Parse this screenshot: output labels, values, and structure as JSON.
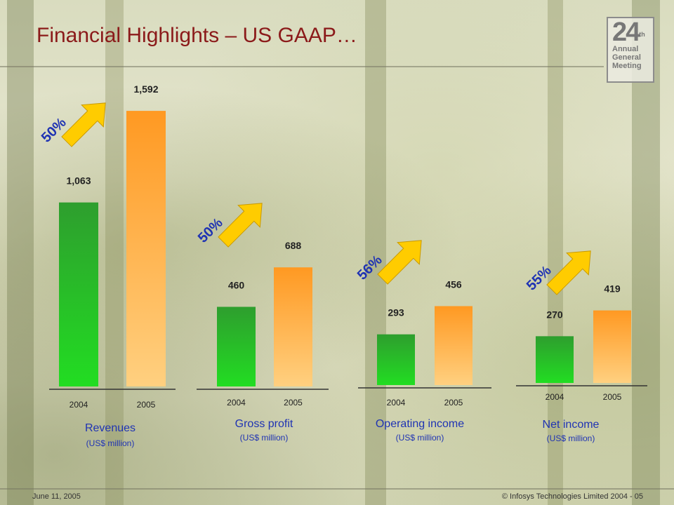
{
  "slide": {
    "title": "Financial Highlights – US GAAP…",
    "logo": {
      "number": "24",
      "suffix": "th",
      "lines": [
        "Annual",
        "General",
        "Meeting"
      ]
    },
    "footer": {
      "date": "June 11, 2005",
      "copyright": "© Infosys Technologies Limited 2004 - 05"
    }
  },
  "chart_data": {
    "type": "bar",
    "unit": "(US$ million)",
    "colors": {
      "y2004": "#2e9e2e",
      "y2005": "#ff9933",
      "growth_text": "#1f33b3",
      "arrow": "#ffcc00"
    },
    "groups": [
      {
        "name": "Revenues",
        "unit": "(US$ million)",
        "categories": [
          "2004",
          "2005"
        ],
        "values": [
          1063,
          1592
        ],
        "value_labels": [
          "1,063",
          "1,592"
        ],
        "growth": "50%"
      },
      {
        "name": "Gross profit",
        "unit": "(US$ million)",
        "categories": [
          "2004",
          "2005"
        ],
        "values": [
          460,
          688
        ],
        "value_labels": [
          "460",
          "688"
        ],
        "growth": "50%"
      },
      {
        "name": "Operating income",
        "unit": "(US$ million)",
        "categories": [
          "2004",
          "2005"
        ],
        "values": [
          293,
          456
        ],
        "value_labels": [
          "293",
          "456"
        ],
        "growth": "56%"
      },
      {
        "name": "Net income",
        "unit": "(US$ million)",
        "categories": [
          "2004",
          "2005"
        ],
        "values": [
          270,
          419
        ],
        "value_labels": [
          "270",
          "419"
        ],
        "growth": "55%"
      }
    ]
  }
}
